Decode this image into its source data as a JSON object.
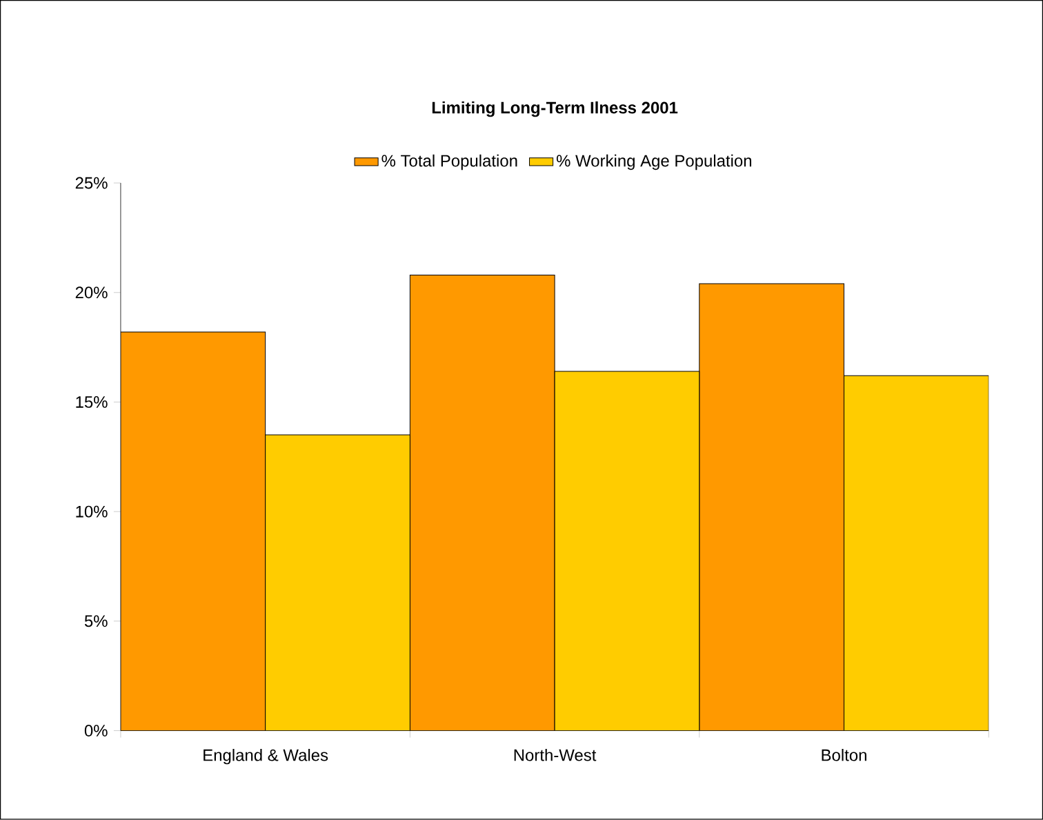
{
  "chart_data": {
    "type": "bar",
    "title": "Limiting Long-Term Ilness 2001",
    "categories": [
      "England & Wales",
      "North-West",
      "Bolton"
    ],
    "series": [
      {
        "name": "% Total Population",
        "color": "#ff9900",
        "values": [
          18.2,
          20.8,
          20.4
        ]
      },
      {
        "name": "% Working Age Population",
        "color": "#ffcc00",
        "values": [
          13.5,
          16.4,
          16.2
        ]
      }
    ],
    "ylim": [
      0,
      25
    ],
    "yticks": [
      {
        "value": 0,
        "label": "0%"
      },
      {
        "value": 5,
        "label": "5%"
      },
      {
        "value": 10,
        "label": "10%"
      },
      {
        "value": 15,
        "label": "15%"
      },
      {
        "value": 20,
        "label": "20%"
      },
      {
        "value": 25,
        "label": "25%"
      }
    ],
    "legend": "top"
  }
}
